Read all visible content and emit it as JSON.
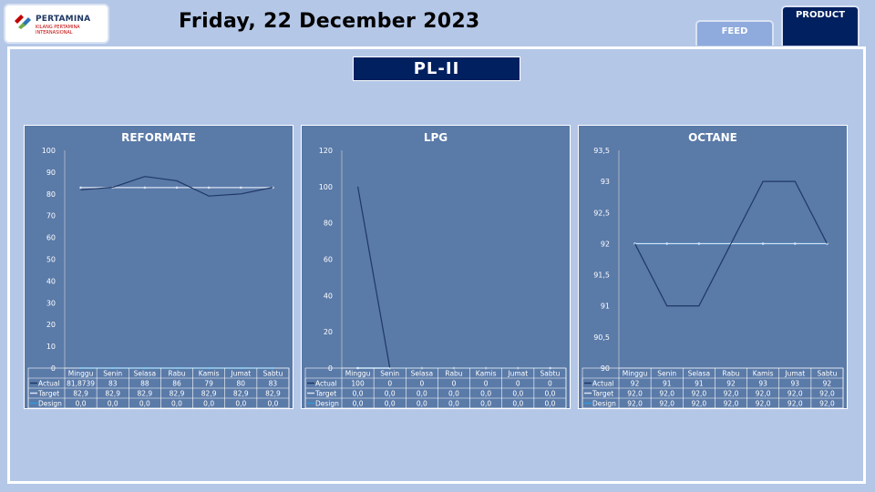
{
  "header": {
    "logo_name": "PERTAMINA",
    "logo_sub": "KILANG PERTAMINA INTERNASIONAL",
    "date": "Friday, 22 December 2023"
  },
  "tabs": {
    "feed": "FEED",
    "product": "PRODUCT"
  },
  "page_title": "PL-II",
  "colors": {
    "actual": "#1f3864",
    "target": "#dae3f3",
    "design": "#2e9bdc",
    "panel": "#5a7aa8",
    "navy": "#002060"
  },
  "chart_data": [
    {
      "type": "line",
      "title": "REFORMATE",
      "categories": [
        "Minggu",
        "Senin",
        "Selasa",
        "Rabu",
        "Kamis",
        "Jumat",
        "Sabtu"
      ],
      "ylim": [
        0,
        100
      ],
      "yticks": [
        "0",
        "10",
        "20",
        "30",
        "40",
        "50",
        "60",
        "70",
        "80",
        "90",
        "100"
      ],
      "series": [
        {
          "name": "Actual",
          "values": [
            81.8739,
            83,
            88,
            86,
            79,
            80,
            83
          ],
          "labels": [
            "81,8739",
            "83",
            "88",
            "86",
            "79",
            "80",
            "83"
          ]
        },
        {
          "name": "Target",
          "values": [
            82.9,
            82.9,
            82.9,
            82.9,
            82.9,
            82.9,
            82.9
          ],
          "labels": [
            "82,9",
            "82,9",
            "82,9",
            "82,9",
            "82,9",
            "82,9",
            "82,9"
          ]
        },
        {
          "name": "Design",
          "values": [
            0,
            0,
            0,
            0,
            0,
            0,
            0
          ],
          "labels": [
            "0,0",
            "0,0",
            "0,0",
            "0,0",
            "0,0",
            "0,0",
            "0,0"
          ]
        }
      ]
    },
    {
      "type": "line",
      "title": "LPG",
      "categories": [
        "Minggu",
        "Senin",
        "Selasa",
        "Rabu",
        "Kamis",
        "Jumat",
        "Sabtu"
      ],
      "ylim": [
        0,
        120
      ],
      "yticks": [
        "0",
        "20",
        "40",
        "60",
        "80",
        "100",
        "120"
      ],
      "series": [
        {
          "name": "Actual",
          "values": [
            100,
            0,
            0,
            0,
            0,
            0,
            0
          ],
          "labels": [
            "100",
            "0",
            "0",
            "0",
            "0",
            "0",
            "0"
          ]
        },
        {
          "name": "Target",
          "values": [
            0,
            0,
            0,
            0,
            0,
            0,
            0
          ],
          "labels": [
            "0,0",
            "0,0",
            "0,0",
            "0,0",
            "0,0",
            "0,0",
            "0,0"
          ]
        },
        {
          "name": "Design",
          "values": [
            0,
            0,
            0,
            0,
            0,
            0,
            0
          ],
          "labels": [
            "0,0",
            "0,0",
            "0,0",
            "0,0",
            "0,0",
            "0,0",
            "0,0"
          ]
        }
      ]
    },
    {
      "type": "line",
      "title": "OCTANE",
      "categories": [
        "Minggu",
        "Senin",
        "Selasa",
        "Rabu",
        "Kamis",
        "Jumat",
        "Sabtu"
      ],
      "ylim": [
        90,
        93.5
      ],
      "yticks": [
        "90",
        "90,5",
        "91",
        "91,5",
        "92",
        "92,5",
        "93",
        "93,5"
      ],
      "series": [
        {
          "name": "Actual",
          "values": [
            92,
            91,
            91,
            92,
            93,
            93,
            92
          ],
          "labels": [
            "92",
            "91",
            "91",
            "92",
            "93",
            "93",
            "92"
          ]
        },
        {
          "name": "Target",
          "values": [
            92,
            92,
            92,
            92,
            92,
            92,
            92
          ],
          "labels": [
            "92,0",
            "92,0",
            "92,0",
            "92,0",
            "92,0",
            "92,0",
            "92,0"
          ]
        },
        {
          "name": "Design",
          "values": [
            92,
            92,
            92,
            92,
            92,
            92,
            92
          ],
          "labels": [
            "92,0",
            "92,0",
            "92,0",
            "92,0",
            "92,0",
            "92,0",
            "92,0"
          ]
        }
      ]
    }
  ]
}
